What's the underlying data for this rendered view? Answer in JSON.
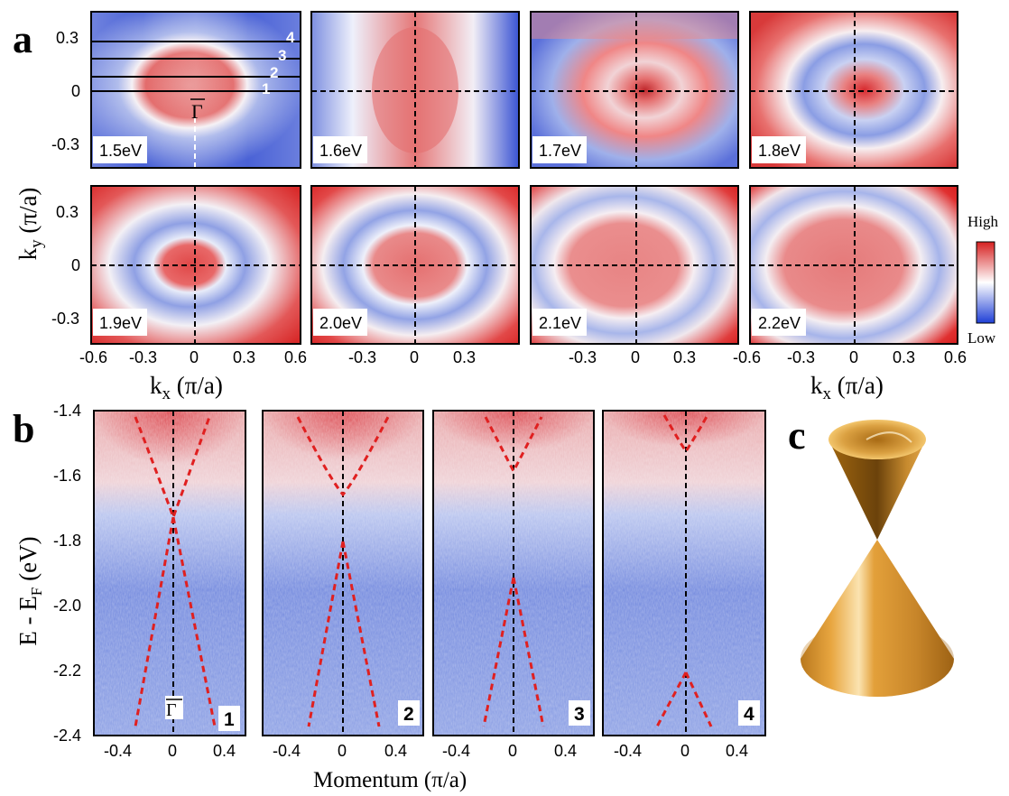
{
  "panel_labels": {
    "a": "a",
    "b": "b",
    "c": "c"
  },
  "panel_a": {
    "energy_labels": [
      "1.5eV",
      "1.6eV",
      "1.7eV",
      "1.8eV",
      "1.9eV",
      "2.0eV",
      "2.1eV",
      "2.2eV"
    ],
    "ky_ticks": [
      "0.3",
      "0",
      "-0.3"
    ],
    "kx_ticks_first": [
      "-0.6",
      "-0.3",
      "0",
      "0.3",
      "0.6"
    ],
    "kx_ticks_inner": [
      "-0.3",
      "0",
      "0.3"
    ],
    "kx_ticks_last": [
      "-0.6",
      "-0.3",
      "0",
      "0.3",
      "0.6"
    ],
    "y_label_main": "k",
    "y_label_sub": "y",
    "y_label_unit": " (π/a)",
    "x_label_main": "k",
    "x_label_sub": "x",
    "x_label_unit": " (π/a)",
    "gamma_label": "Γ",
    "cut_labels": [
      "1",
      "2",
      "3",
      "4"
    ],
    "colorbar": {
      "high": "High",
      "low": "Low",
      "colors": [
        "#d62728",
        "#ffffff",
        "#1f3fd6"
      ]
    }
  },
  "panel_b": {
    "y_ticks": [
      "-1.4",
      "-1.6",
      "-1.8",
      "-2.0",
      "-2.2",
      "-2.4"
    ],
    "x_ticks": [
      "-0.4",
      "0",
      "0.4"
    ],
    "y_label_main": "E - E",
    "y_label_sub": "F",
    "y_label_unit": " (eV)",
    "x_label": "Momentum (π/a)",
    "gamma_label": "Γ",
    "cut_numbers": [
      "1",
      "2",
      "3",
      "4"
    ],
    "dirac_point_energies_eV": [
      -1.72,
      -1.66,
      -1.6,
      -1.54
    ]
  },
  "panel_c": {
    "description_icon": "dirac-cone-icon",
    "color": "#d9962e"
  }
}
